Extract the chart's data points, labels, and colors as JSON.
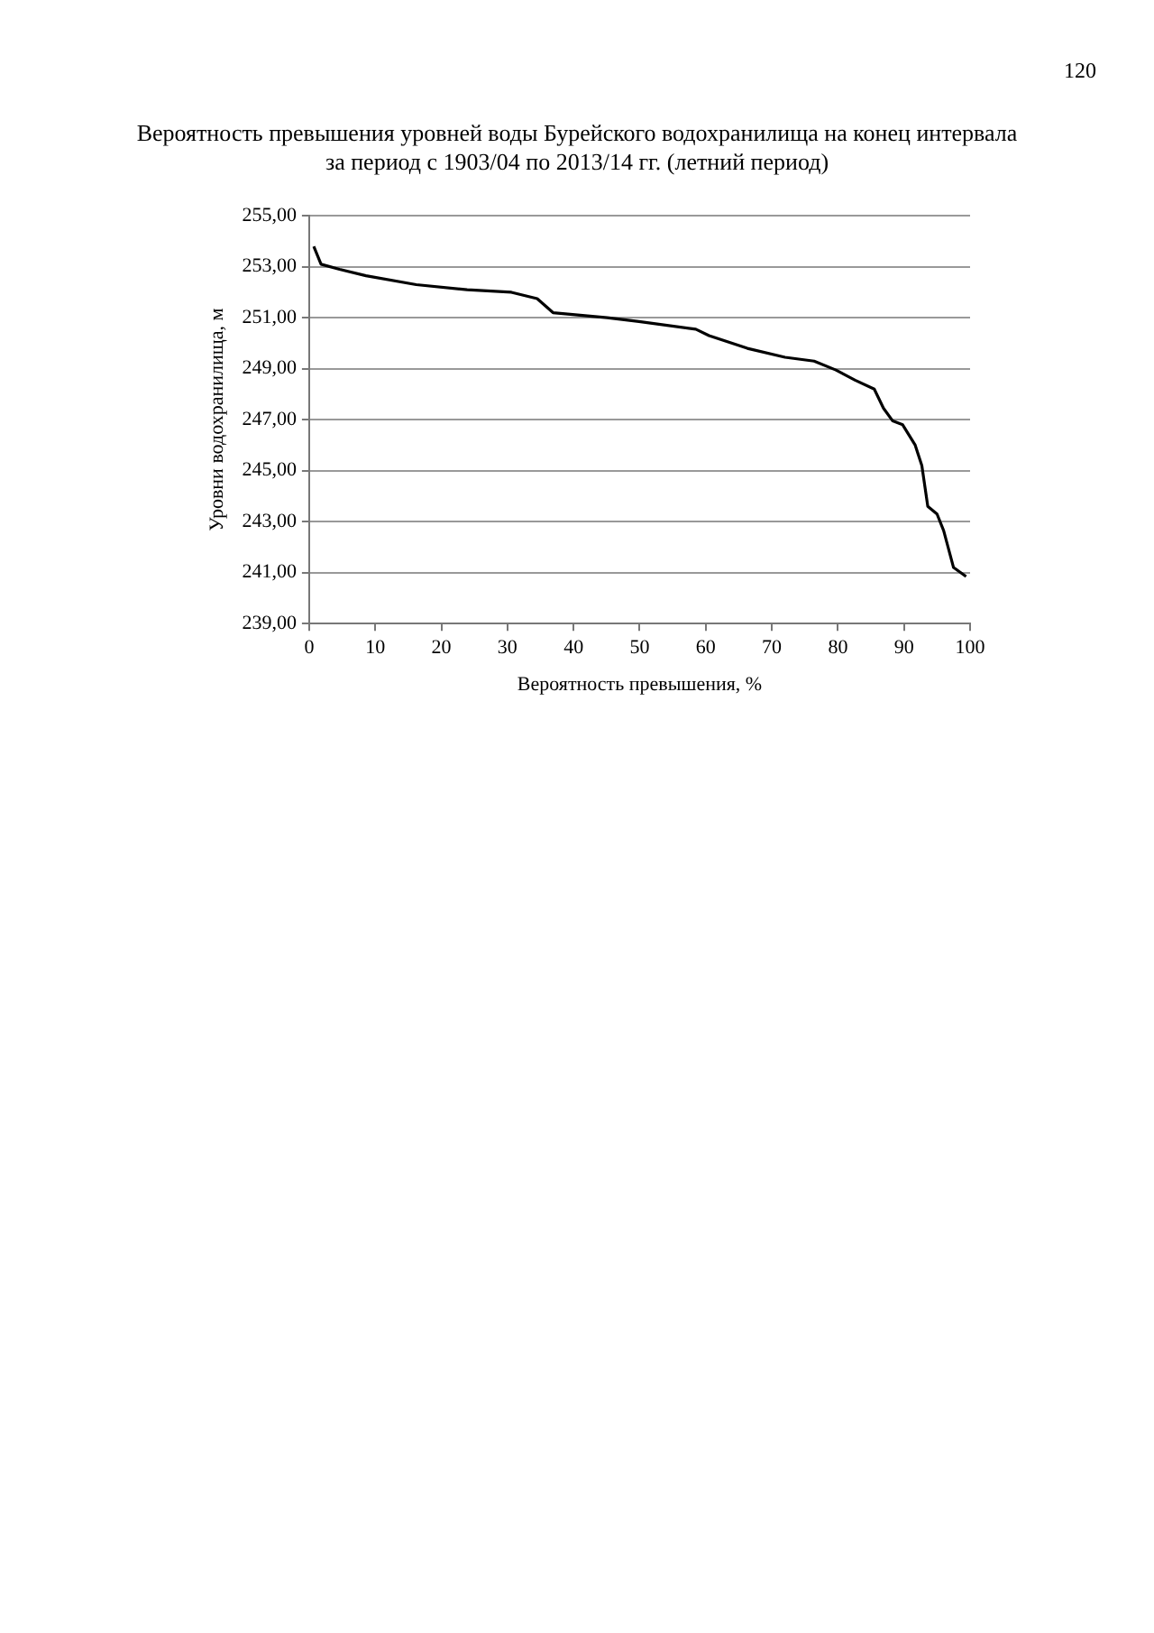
{
  "chart_data": {
    "type": "line",
    "title": "Вероятность превышения уровней воды Бурейского водохранилища на конец интервала\nза период с 1903/04 по 2013/14 гг. (летний период)",
    "xlabel": "Вероятность превышения, %",
    "ylabel": "Уровни водохранилища, м",
    "annotations": [
      "120"
    ],
    "series": [
      {
        "color": "#000000",
        "x": [
          0.7,
          1.8,
          4.6,
          8.6,
          16.2,
          23.9,
          30.6,
          34.5,
          36.9,
          45.1,
          49.9,
          58.5,
          60.5,
          66.3,
          72,
          76.4,
          79.7,
          82.6,
          85.5,
          86.9,
          88.3,
          89.8,
          91.7,
          92.7,
          93.6,
          95,
          96,
          97.5,
          99.4
        ],
        "values": [
          253.8,
          253.1,
          252.9,
          252.65,
          252.3,
          252.1,
          252.0,
          251.75,
          251.2,
          251.0,
          250.85,
          250.55,
          250.3,
          249.8,
          249.45,
          249.3,
          248.95,
          248.55,
          248.2,
          247.45,
          246.95,
          246.8,
          246.0,
          245.2,
          243.6,
          243.3,
          242.65,
          241.2,
          240.85
        ]
      }
    ],
    "xlim": [
      0,
      100
    ],
    "xticks": [
      0,
      10,
      20,
      30,
      40,
      50,
      60,
      70,
      80,
      90,
      100
    ],
    "ylim": [
      239,
      255
    ],
    "yticks": [
      {
        "value": 239,
        "label": "239,00"
      },
      {
        "value": 241,
        "label": "241,00"
      },
      {
        "value": 243,
        "label": "243,00"
      },
      {
        "value": 245,
        "label": "245,00"
      },
      {
        "value": 247,
        "label": "247,00"
      },
      {
        "value": 249,
        "label": "249,00"
      },
      {
        "value": 251,
        "label": "251,00"
      },
      {
        "value": 253,
        "label": "253,00"
      },
      {
        "value": 255,
        "label": "255,00"
      }
    ],
    "grid": "y",
    "legend": false,
    "marker": "none",
    "line_style": "solid"
  }
}
